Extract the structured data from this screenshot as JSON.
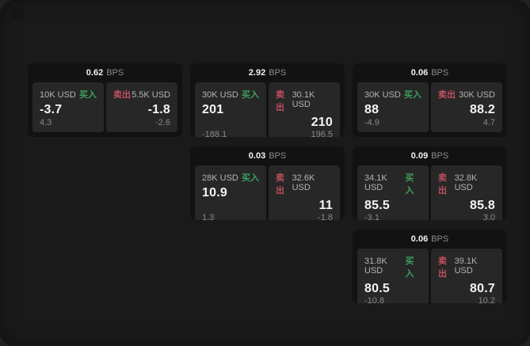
{
  "labels": {
    "bps": "BPS",
    "buy": "买入",
    "sell": "卖出"
  },
  "colors": {
    "buy_accent": "#3da05c",
    "sell_accent": "#c24f5e",
    "surface": "#1a1a1a",
    "card": "#121212",
    "panel": "#272727"
  },
  "cards": [
    {
      "bps": "0.62",
      "buy": {
        "amount": "10K USD",
        "value": "-3.7",
        "delta": "4.3"
      },
      "sell": {
        "amount": "5.5K USD",
        "value": "-1.8",
        "delta": "-2.6"
      }
    },
    {
      "bps": "2.92",
      "buy": {
        "amount": "30K USD",
        "value": "201",
        "delta": "-188.1"
      },
      "sell": {
        "amount": "30.1K USD",
        "value": "210",
        "delta": "196.5"
      }
    },
    {
      "bps": "0.06",
      "buy": {
        "amount": "30K USD",
        "value": "88",
        "delta": "-4.9"
      },
      "sell": {
        "amount": "30K USD",
        "value": "88.2",
        "delta": "4.7"
      }
    },
    {
      "bps": "0.03",
      "buy": {
        "amount": "28K USD",
        "value": "10.9",
        "delta": "1.3"
      },
      "sell": {
        "amount": "32.6K USD",
        "value": "11",
        "delta": "-1.8"
      }
    },
    {
      "bps": "0.09",
      "buy": {
        "amount": "34.1K USD",
        "value": "85.5",
        "delta": "-3.1"
      },
      "sell": {
        "amount": "32.8K USD",
        "value": "85.8",
        "delta": "3.0"
      }
    },
    {
      "bps": "0.06",
      "buy": {
        "amount": "31.8K USD",
        "value": "80.5",
        "delta": "-10.8"
      },
      "sell": {
        "amount": "39.1K USD",
        "value": "80.7",
        "delta": "10.2"
      }
    }
  ]
}
